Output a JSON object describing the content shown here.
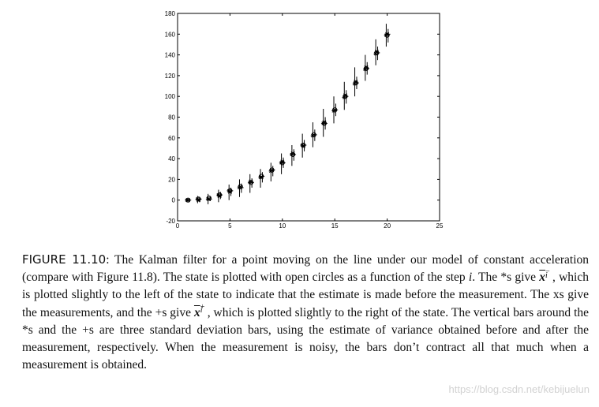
{
  "figure": {
    "label": "FIGURE 11.10",
    "chart_data": {
      "type": "scatter",
      "xlim": [
        0,
        25
      ],
      "ylim": [
        -20,
        180
      ],
      "x_ticks": [
        0,
        5,
        10,
        15,
        20,
        25
      ],
      "y_ticks": [
        -20,
        0,
        20,
        40,
        60,
        80,
        100,
        120,
        140,
        160,
        180
      ],
      "x_tick_labels": [
        "0",
        "5",
        "10",
        "15",
        "20",
        "25"
      ],
      "y_tick_labels": [
        "-20",
        "0",
        "20",
        "40",
        "60",
        "80",
        "100",
        "120",
        "140",
        "160",
        "180"
      ],
      "x": [
        1,
        2,
        3,
        4,
        5,
        6,
        7,
        8,
        9,
        10,
        11,
        12,
        13,
        14,
        15,
        16,
        17,
        18,
        19,
        20
      ],
      "series": [
        {
          "marker": "open-circle",
          "values": [
            0,
            1,
            2,
            5,
            9,
            13,
            17,
            23,
            29,
            36,
            44,
            53,
            63,
            74,
            87,
            100,
            113,
            127,
            142,
            159
          ]
        },
        {
          "marker": "star",
          "values": [
            0,
            1,
            1,
            5,
            9,
            12,
            17,
            22,
            28,
            36,
            44,
            53,
            62,
            74,
            86,
            99,
            112,
            126,
            141,
            159
          ]
        },
        {
          "marker": "cross",
          "values": [
            0,
            0,
            1,
            4,
            8,
            13,
            18,
            22,
            29,
            37,
            45,
            52,
            63,
            75,
            87,
            101,
            114,
            128,
            143,
            160
          ]
        },
        {
          "marker": "plus",
          "values": [
            0,
            1,
            1,
            5,
            9,
            12,
            17,
            23,
            29,
            36,
            44,
            53,
            63,
            74,
            87,
            100,
            113,
            127,
            142,
            160
          ]
        }
      ],
      "error_bars_before": [
        [
          -2,
          2
        ],
        [
          -3,
          4
        ],
        [
          -4,
          6
        ],
        [
          -2,
          10
        ],
        [
          0,
          15
        ],
        [
          3,
          20
        ],
        [
          7,
          25
        ],
        [
          12,
          30
        ],
        [
          18,
          36
        ],
        [
          25,
          45
        ],
        [
          33,
          53
        ],
        [
          41,
          64
        ],
        [
          51,
          75
        ],
        [
          61,
          88
        ],
        [
          74,
          100
        ],
        [
          87,
          114
        ],
        [
          100,
          128
        ],
        [
          115,
          140
        ],
        [
          130,
          155
        ],
        [
          148,
          170
        ]
      ],
      "error_bars_after": [
        [
          -1,
          1
        ],
        [
          -2,
          3
        ],
        [
          -1,
          4
        ],
        [
          1,
          8
        ],
        [
          4,
          12
        ],
        [
          7,
          16
        ],
        [
          12,
          21
        ],
        [
          17,
          27
        ],
        [
          23,
          33
        ],
        [
          31,
          41
        ],
        [
          38,
          49
        ],
        [
          47,
          58
        ],
        [
          57,
          68
        ],
        [
          68,
          80
        ],
        [
          81,
          93
        ],
        [
          93,
          106
        ],
        [
          107,
          119
        ],
        [
          121,
          133
        ],
        [
          135,
          148
        ],
        [
          152,
          165
        ]
      ]
    }
  },
  "caption": {
    "s1": ": The Kalman filter for a point moving on the line under our model of constant acceleration (compare with Figure 11.8). The state is plotted with open circles as a function of the step ",
    "i1": "i",
    "s2": ". The *s give ",
    "x1": "x",
    "sub1": "i",
    "sup1": "−",
    "s3": ", which is plotted slightly to the left of the state to indicate that the estimate is made before the measurement. The xs give the measurements, and the +s give ",
    "x2": "x",
    "sub2": "i",
    "sup2": "+",
    "s4": ", which is plotted slightly to the right of the state. The vertical bars around the *s and the +s are three standard deviation bars, using the estimate of variance obtained before and after the measurement, respectively. When the measurement is noisy, the bars don’t contract all that much when a measurement is obtained."
  },
  "watermark": "https://blog.csdn.net/kebijuelun"
}
